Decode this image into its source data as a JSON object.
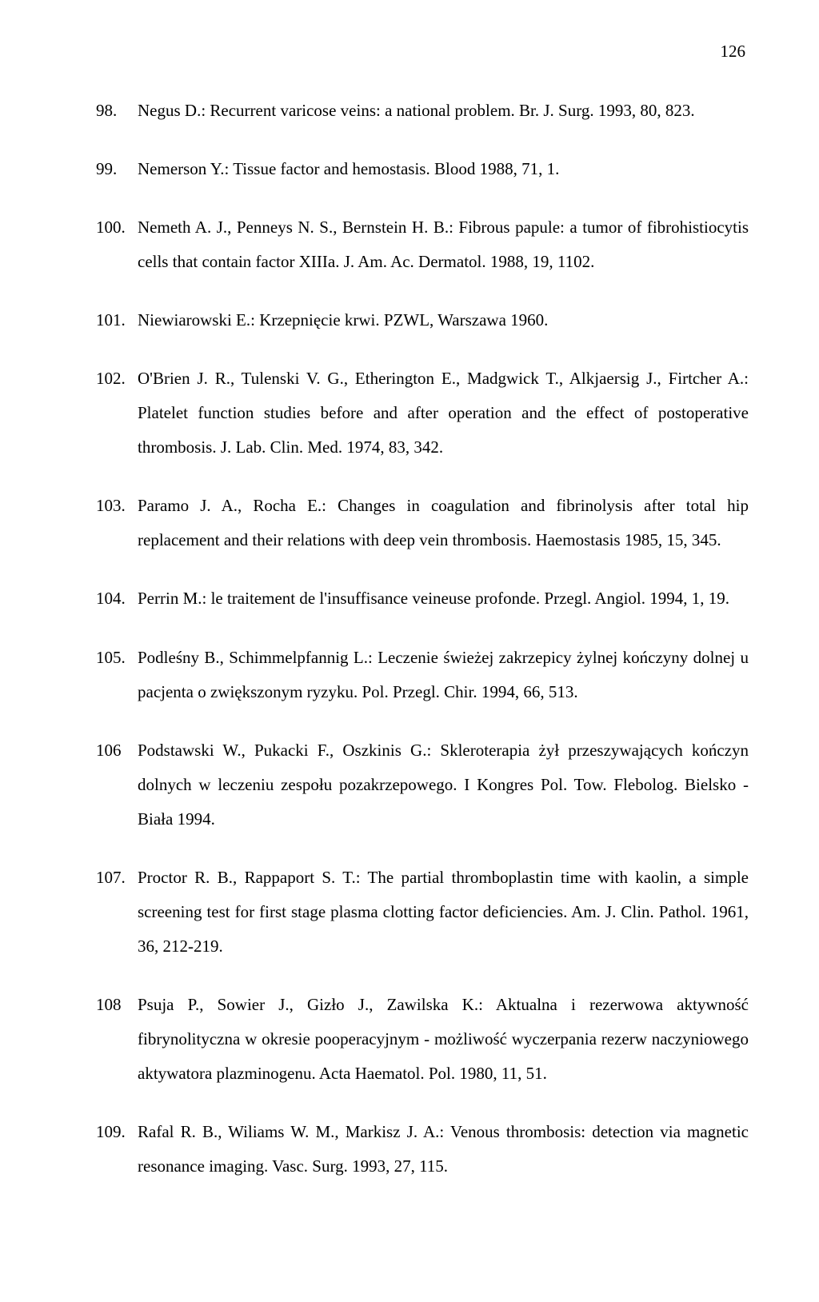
{
  "page_number": "126",
  "references": [
    {
      "num": "98.",
      "text": "Negus D.: Recurrent varicose veins: a national problem. Br. J. Surg. 1993, 80, 823."
    },
    {
      "num": "99.",
      "text": "Nemerson Y.: Tissue factor and hemostasis. Blood 1988, 71, 1."
    },
    {
      "num": "100.",
      "text": "Nemeth A. J., Penneys N. S., Bernstein H. B.: Fibrous papule: a tumor of fibrohistiocytis cells that contain factor XIIIa. J. Am. Ac. Dermatol. 1988, 19, 1102."
    },
    {
      "num": "101.",
      "text": "Niewiarowski E.: Krzepnięcie krwi. PZWL, Warszawa 1960."
    },
    {
      "num": "102.",
      "text": "O'Brien J. R., Tulenski V. G., Etherington E., Madgwick T., Alkjaersig J., Firtcher A.: Platelet function studies before and after operation and the effect of postoperative thrombosis. J. Lab. Clin. Med. 1974, 83, 342."
    },
    {
      "num": "103.",
      "text": "Paramo J. A., Rocha E.: Changes in coagulation and fibrinolysis after total hip replacement and their relations with deep vein thrombosis. Haemostasis 1985, 15, 345."
    },
    {
      "num": "104.",
      "text": "Perrin M.: le traitement de l'insuffisance veineuse profonde. Przegl. Angiol. 1994, 1, 19."
    },
    {
      "num": "105.",
      "text": "Podleśny B., Schimmelpfannig L.: Leczenie świeżej zakrzepicy żylnej kończyny dolnej u pacjenta o zwiększonym ryzyku. Pol. Przegl. Chir. 1994, 66, 513."
    },
    {
      "num": "106",
      "text": "Podstawski W., Pukacki F., Oszkinis G.: Skleroterapia żył przeszywających kończyn dolnych w leczeniu zespołu pozakrzepowego. I Kongres Pol. Tow. Flebolog. Bielsko - Biała 1994."
    },
    {
      "num": "107.",
      "text": "Proctor R. B., Rappaport S. T.: The partial thromboplastin time with kaolin, a simple screening test for first stage plasma clotting factor deficiencies. Am. J. Clin. Pathol. 1961, 36, 212-219."
    },
    {
      "num": "108",
      "text": "Psuja P., Sowier J., Gizło J., Zawilska K.: Aktualna i rezerwowa aktywność fibrynolityczna w okresie pooperacyjnym - możliwość wyczerpania rezerw naczyniowego aktywatora plazminogenu. Acta Haematol. Pol. 1980, 11, 51."
    },
    {
      "num": "109.",
      "text": "Rafal R. B., Wiliams W. M., Markisz J. A.: Venous thrombosis: detection via magnetic resonance imaging. Vasc. Surg. 1993, 27, 115."
    }
  ]
}
